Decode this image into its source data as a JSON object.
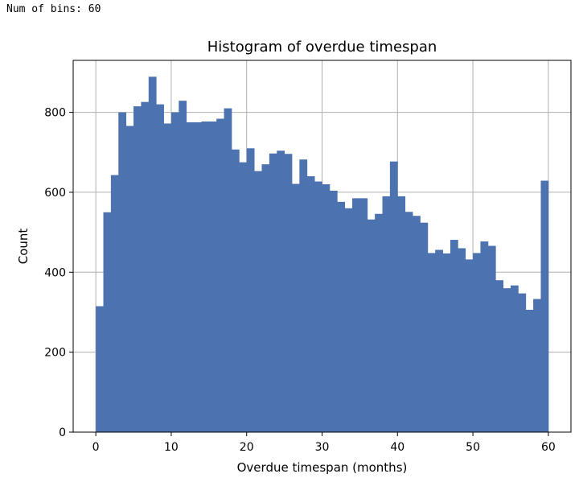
{
  "console": {
    "output": "Num of bins: 60"
  },
  "chart_data": {
    "type": "bar",
    "title": "Histogram of overdue timespan",
    "xlabel": "Overdue timespan (months)",
    "ylabel": "Count",
    "bin_start": 0,
    "bin_width": 1,
    "xlim": [
      -3,
      63
    ],
    "ylim": [
      0,
      930
    ],
    "xticks": [
      0,
      10,
      20,
      30,
      40,
      50,
      60
    ],
    "yticks": [
      0,
      200,
      400,
      600,
      800
    ],
    "grid": true,
    "bar_color": "#4c72b0",
    "values": [
      315,
      550,
      643,
      800,
      766,
      815,
      826,
      889,
      820,
      772,
      800,
      829,
      775,
      775,
      777,
      777,
      784,
      810,
      707,
      675,
      710,
      653,
      670,
      697,
      704,
      696,
      621,
      682,
      640,
      627,
      620,
      604,
      576,
      560,
      585,
      585,
      532,
      546,
      590,
      677,
      590,
      551,
      541,
      524,
      448,
      456,
      447,
      481,
      460,
      432,
      448,
      477,
      466,
      380,
      360,
      367,
      347,
      306,
      333,
      629
    ]
  }
}
